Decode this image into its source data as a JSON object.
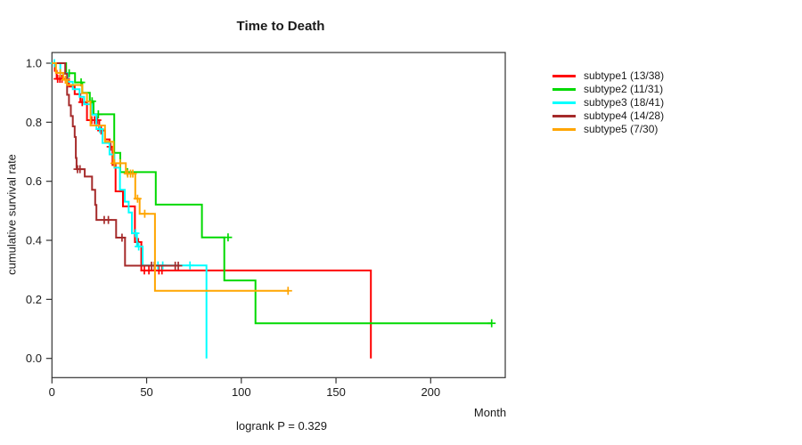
{
  "title": "Time to Death",
  "xlabel": "Month",
  "ylabel": "cumulative survival rate",
  "footnote": "logrank P = 0.329",
  "chart_data": {
    "type": "line",
    "variant": "kaplan-meier-step",
    "title": "Time to Death",
    "xlabel": "Month",
    "ylabel": "cumulative survival rate",
    "annotation": "logrank P = 0.329",
    "xlim": [
      0,
      239
    ],
    "ylim": [
      0.0,
      1.0
    ],
    "xticks": [
      0,
      50,
      100,
      150,
      200
    ],
    "yticks": [
      "0.0",
      "0.2",
      "0.4",
      "0.6",
      "0.8",
      "1.0"
    ],
    "grid": false,
    "legend_position": "right-outside",
    "series": [
      {
        "name": "subtype1",
        "legend_label": "subtype1 (13/38)",
        "events": 13,
        "n": 38,
        "color": "#ff0000",
        "steps": [
          [
            0,
            1.0
          ],
          [
            1.5,
            0.974
          ],
          [
            2.5,
            0.947
          ],
          [
            9,
            0.921
          ],
          [
            12,
            0.895
          ],
          [
            15,
            0.868
          ],
          [
            18.5,
            0.807
          ],
          [
            25,
            0.772
          ],
          [
            28,
            0.742
          ],
          [
            30.5,
            0.717
          ],
          [
            32,
            0.655
          ],
          [
            33.6,
            0.566
          ],
          [
            37.5,
            0.515
          ],
          [
            43.8,
            0.394
          ],
          [
            47.2,
            0.298
          ],
          [
            168.4,
            0.0
          ]
        ],
        "censors": [
          [
            3,
            0.947
          ],
          [
            4.2,
            0.947
          ],
          [
            5.3,
            0.947
          ],
          [
            16,
            0.868
          ],
          [
            21,
            0.807
          ],
          [
            22.5,
            0.807
          ],
          [
            24,
            0.807
          ],
          [
            26,
            0.772
          ],
          [
            31,
            0.717
          ],
          [
            45.6,
            0.394
          ],
          [
            48.8,
            0.298
          ],
          [
            51.2,
            0.298
          ],
          [
            56.5,
            0.298
          ],
          [
            58.1,
            0.298
          ]
        ]
      },
      {
        "name": "subtype2",
        "legend_label": "subtype2 (11/31)",
        "events": 11,
        "n": 31,
        "color": "#00d900",
        "steps": [
          [
            0,
            1.0
          ],
          [
            7.5,
            0.966
          ],
          [
            12.2,
            0.935
          ],
          [
            16,
            0.9
          ],
          [
            20,
            0.871
          ],
          [
            22,
            0.827
          ],
          [
            32.9,
            0.696
          ],
          [
            36.1,
            0.631
          ],
          [
            54.8,
            0.521
          ],
          [
            79.2,
            0.41
          ],
          [
            91,
            0.264
          ],
          [
            107.5,
            0.119
          ],
          [
            232.2,
            0.119
          ]
        ],
        "censors": [
          [
            9.1,
            0.966
          ],
          [
            15.4,
            0.935
          ],
          [
            21.2,
            0.871
          ],
          [
            24.5,
            0.827
          ],
          [
            39.9,
            0.631
          ],
          [
            93,
            0.41
          ],
          [
            232.2,
            0.119
          ]
        ]
      },
      {
        "name": "subtype3",
        "legend_label": "subtype3 (18/41)",
        "events": 18,
        "n": 41,
        "color": "#00ffff",
        "steps": [
          [
            0,
            1.0
          ],
          [
            4.4,
            0.966
          ],
          [
            8.3,
            0.937
          ],
          [
            11,
            0.912
          ],
          [
            14.6,
            0.886
          ],
          [
            17,
            0.861
          ],
          [
            21,
            0.826
          ],
          [
            23.5,
            0.777
          ],
          [
            26.7,
            0.73
          ],
          [
            30.4,
            0.691
          ],
          [
            33,
            0.646
          ],
          [
            35.9,
            0.571
          ],
          [
            38.5,
            0.531
          ],
          [
            40.5,
            0.494
          ],
          [
            42.2,
            0.424
          ],
          [
            44.9,
            0.379
          ],
          [
            47.9,
            0.315
          ],
          [
            81.6,
            0.0
          ]
        ],
        "censors": [
          [
            1.3,
            1.0
          ],
          [
            25.3,
            0.777
          ],
          [
            44.1,
            0.424
          ],
          [
            45.8,
            0.379
          ],
          [
            56,
            0.315
          ],
          [
            58.5,
            0.315
          ],
          [
            72.9,
            0.315
          ]
        ]
      },
      {
        "name": "subtype4",
        "legend_label": "subtype4 (14/28)",
        "events": 14,
        "n": 28,
        "color": "#a52a2a",
        "steps": [
          [
            0,
            1.0
          ],
          [
            7,
            0.964
          ],
          [
            8,
            0.893
          ],
          [
            9,
            0.857
          ],
          [
            10,
            0.821
          ],
          [
            11,
            0.786
          ],
          [
            12,
            0.75
          ],
          [
            12.6,
            0.679
          ],
          [
            13,
            0.641
          ],
          [
            17.3,
            0.616
          ],
          [
            21.2,
            0.571
          ],
          [
            22.8,
            0.52
          ],
          [
            23.5,
            0.469
          ],
          [
            33.9,
            0.409
          ],
          [
            38.6,
            0.314
          ],
          [
            67.5,
            0.314
          ]
        ],
        "censors": [
          [
            13.5,
            0.641
          ],
          [
            14.8,
            0.641
          ],
          [
            27.6,
            0.469
          ],
          [
            29.8,
            0.469
          ],
          [
            37,
            0.409
          ],
          [
            52.6,
            0.314
          ],
          [
            54.1,
            0.314
          ],
          [
            65.1,
            0.314
          ],
          [
            66.7,
            0.314
          ]
        ]
      },
      {
        "name": "subtype5",
        "legend_label": "subtype5 (7/30)",
        "events": 7,
        "n": 30,
        "color": "#ffa500",
        "steps": [
          [
            0,
            1.0
          ],
          [
            2.1,
            0.967
          ],
          [
            6,
            0.944
          ],
          [
            8,
            0.926
          ],
          [
            16,
            0.898
          ],
          [
            18.5,
            0.87
          ],
          [
            20.4,
            0.789
          ],
          [
            28,
            0.734
          ],
          [
            32.5,
            0.661
          ],
          [
            39,
            0.626
          ],
          [
            44,
            0.541
          ],
          [
            46.3,
            0.49
          ],
          [
            54.4,
            0.229
          ],
          [
            124.7,
            0.229
          ]
        ],
        "censors": [
          [
            4.4,
            0.967
          ],
          [
            7.1,
            0.944
          ],
          [
            33,
            0.661
          ],
          [
            36,
            0.661
          ],
          [
            40,
            0.626
          ],
          [
            41.5,
            0.626
          ],
          [
            42.7,
            0.626
          ],
          [
            45.2,
            0.541
          ],
          [
            49,
            0.49
          ],
          [
            124.7,
            0.229
          ]
        ]
      }
    ]
  }
}
